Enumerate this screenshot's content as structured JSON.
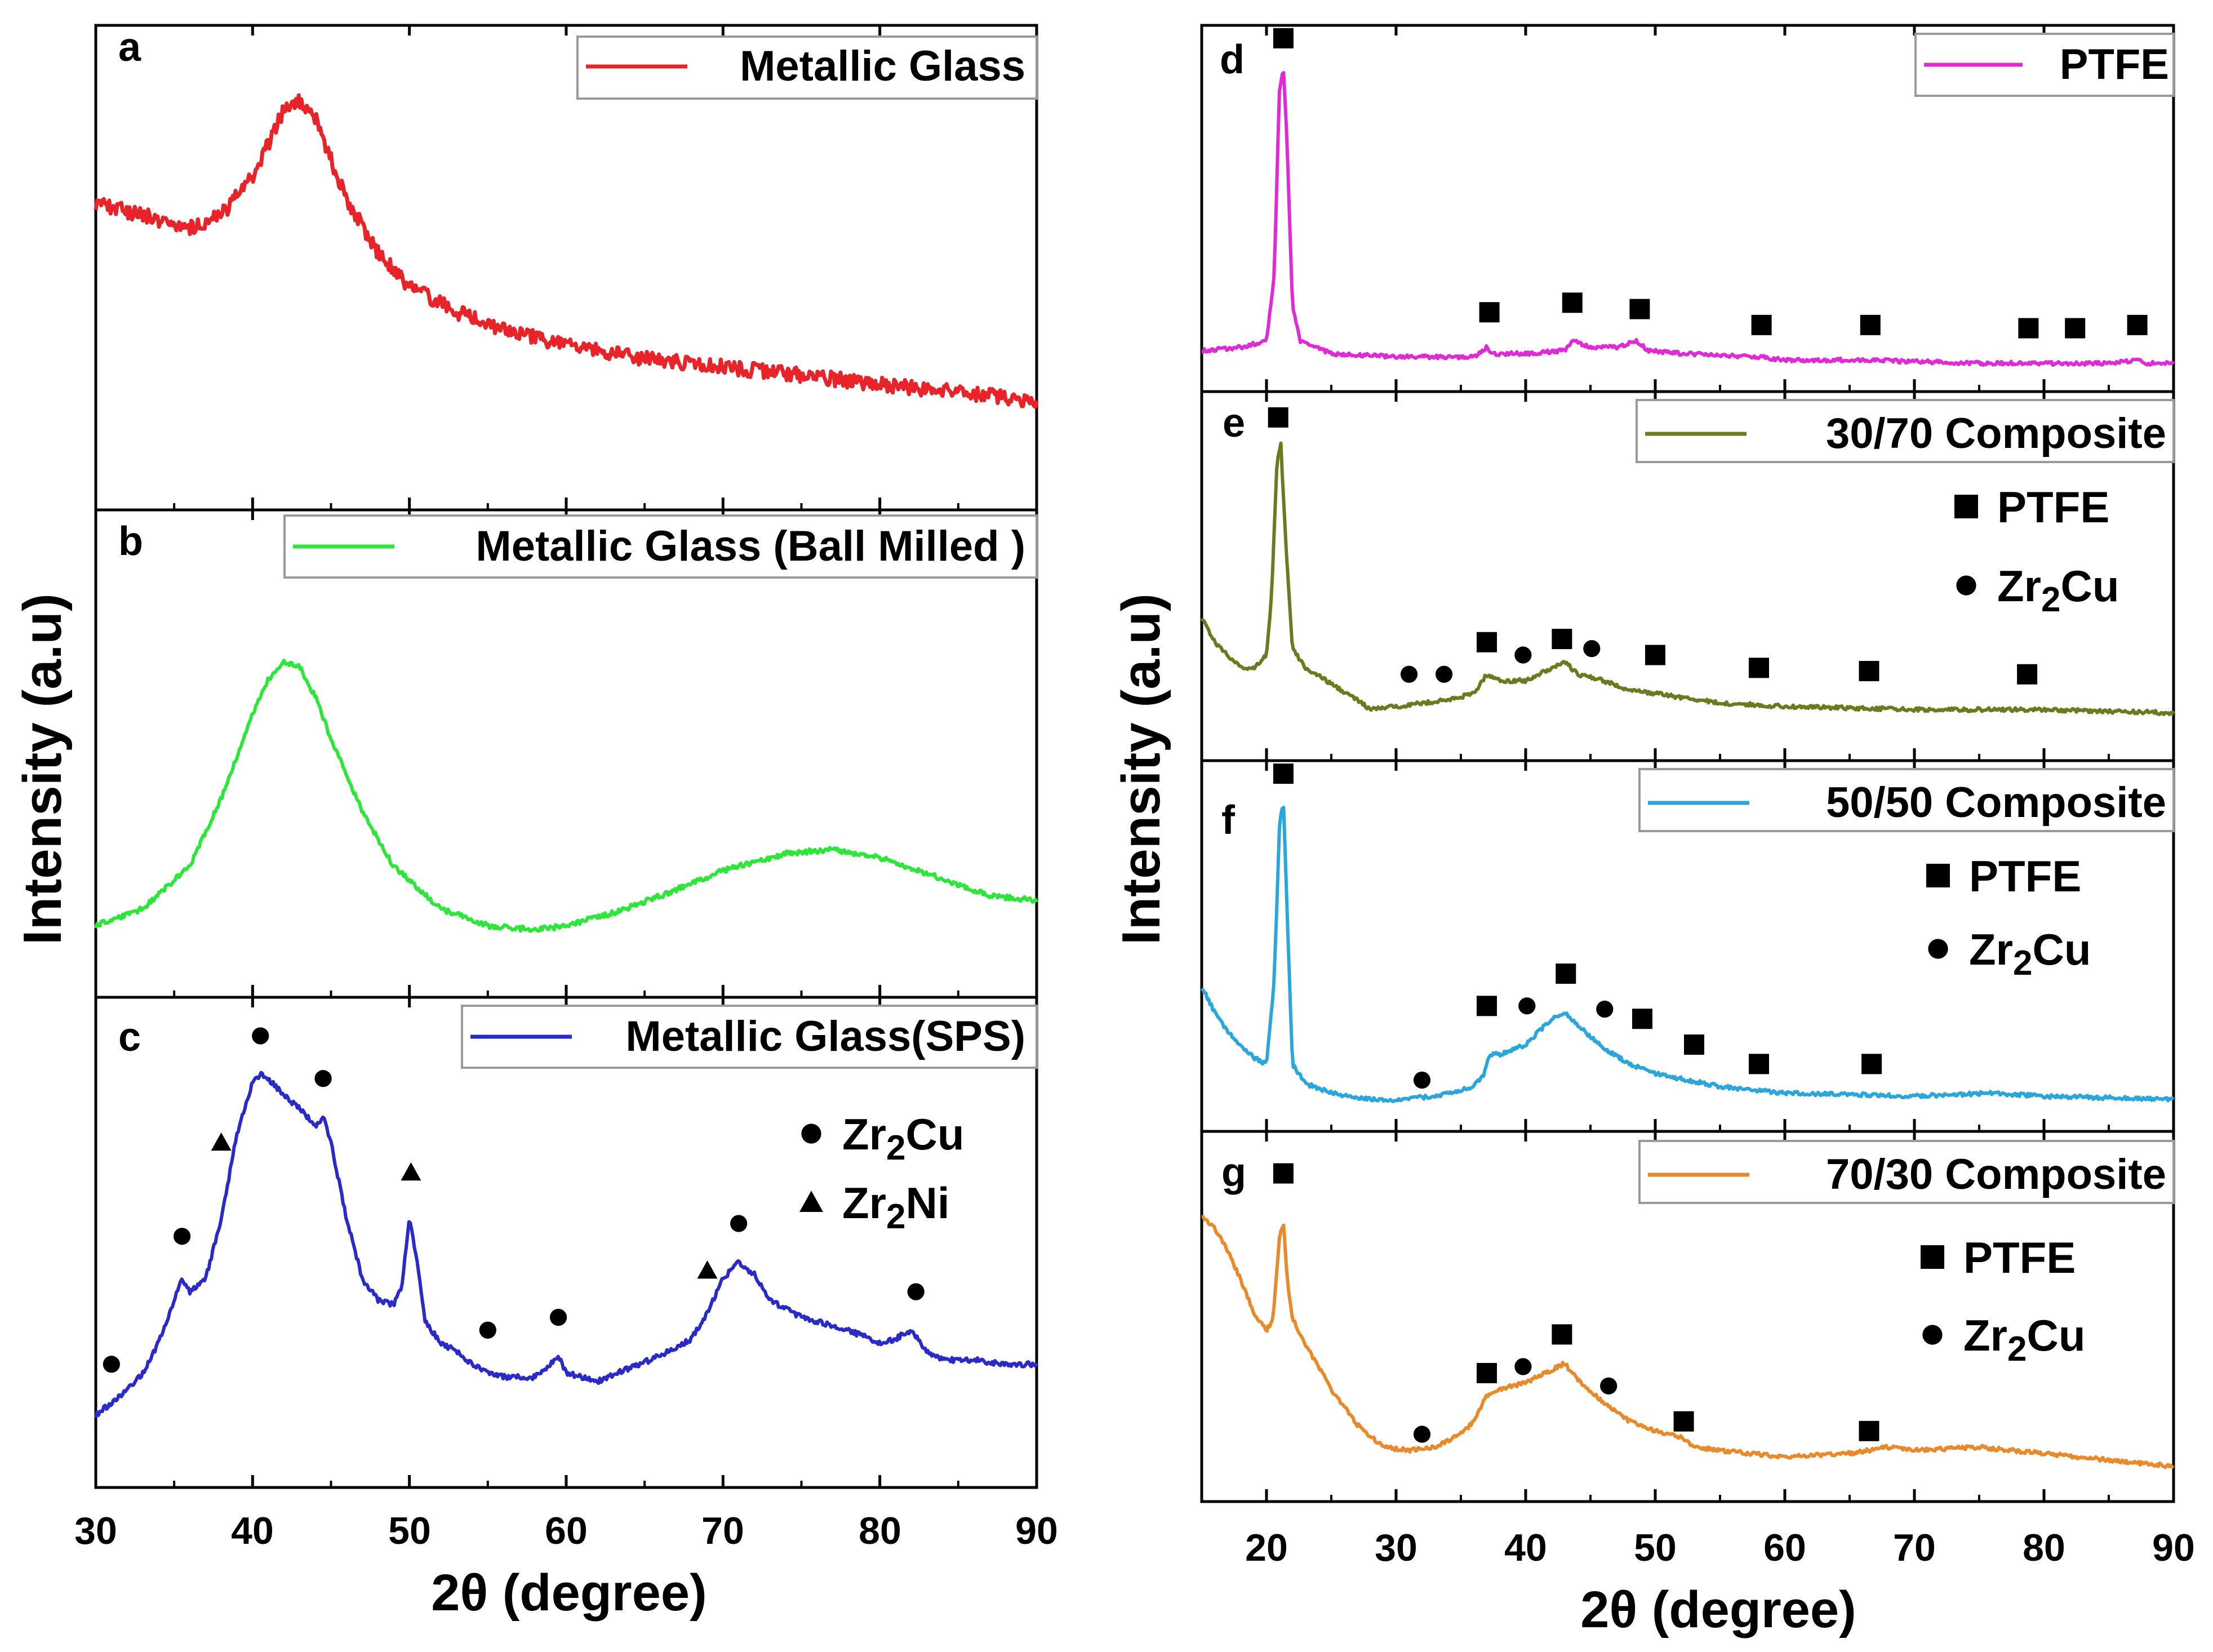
{
  "figure": {
    "left_ylabel": "Intensity (a.u)",
    "right_ylabel": "Intensity (a.u)",
    "left_xlabel": "2θ (degree)",
    "right_xlabel": "2θ (degree)",
    "left_xticks": [
      "30",
      "40",
      "50",
      "60",
      "70",
      "80",
      "90"
    ],
    "right_xticks": [
      "20",
      "30",
      "40",
      "50",
      "60",
      "70",
      "80",
      "90"
    ]
  },
  "chart_data": [
    {
      "id": "a",
      "type": "line",
      "panel_letter": "a",
      "legend": "Metallic Glass",
      "color": "#e8242a",
      "xlim": [
        30,
        90
      ],
      "xlabel": "2θ (degree)",
      "ylabel": "Intensity (a.u)",
      "series": [
        {
          "name": "Metallic Glass",
          "x": [
            30,
            33,
            36,
            38,
            40,
            41,
            42,
            43,
            44,
            45,
            46,
            48,
            50,
            53,
            56,
            60,
            65,
            70,
            75,
            80,
            85,
            90
          ],
          "y": [
            0.66,
            0.63,
            0.6,
            0.63,
            0.72,
            0.8,
            0.88,
            0.9,
            0.86,
            0.76,
            0.67,
            0.54,
            0.46,
            0.4,
            0.36,
            0.32,
            0.29,
            0.27,
            0.25,
            0.23,
            0.21,
            0.19
          ]
        }
      ],
      "markers": []
    },
    {
      "id": "b",
      "type": "line",
      "panel_letter": "b",
      "legend": "Metallic Glass (Ball Milled )",
      "color": "#2ee63a",
      "xlim": [
        30,
        90
      ],
      "xlabel": "2θ (degree)",
      "ylabel": "Intensity (a.u)",
      "series": [
        {
          "name": "Metallic Glass (Ball Milled )",
          "x": [
            30,
            33,
            36,
            38,
            40,
            41,
            42,
            43,
            44,
            45,
            47,
            49,
            52,
            55,
            58,
            60,
            63,
            66,
            70,
            74,
            77,
            80,
            84,
            87,
            90
          ],
          "y": [
            0.1,
            0.14,
            0.24,
            0.4,
            0.6,
            0.68,
            0.72,
            0.71,
            0.64,
            0.54,
            0.37,
            0.24,
            0.14,
            0.1,
            0.09,
            0.1,
            0.13,
            0.17,
            0.23,
            0.27,
            0.28,
            0.26,
            0.21,
            0.17,
            0.16
          ]
        }
      ],
      "markers": []
    },
    {
      "id": "c",
      "type": "line",
      "panel_letter": "c",
      "legend": "Metallic Glass(SPS)",
      "color": "#2a2ac8",
      "xlim": [
        30,
        90
      ],
      "xlabel": "2θ (degree)",
      "ylabel": "Intensity (a.u)",
      "series": [
        {
          "name": "Metallic Glass(SPS)",
          "x": [
            30,
            31,
            32,
            33,
            34,
            35,
            35.5,
            36,
            37,
            38,
            39,
            40,
            40.5,
            41,
            42,
            43,
            44,
            44.5,
            45,
            46,
            47,
            48,
            49,
            49.5,
            50,
            50.5,
            51,
            52,
            53,
            54,
            55,
            56,
            57,
            58,
            59,
            59.5,
            60,
            61,
            62,
            64,
            66,
            68,
            69,
            70,
            71,
            72,
            73,
            75,
            78,
            80,
            81,
            82,
            83,
            84,
            86,
            88,
            90
          ],
          "y": [
            0.1,
            0.13,
            0.16,
            0.2,
            0.27,
            0.37,
            0.42,
            0.39,
            0.42,
            0.56,
            0.76,
            0.88,
            0.9,
            0.89,
            0.85,
            0.82,
            0.78,
            0.8,
            0.74,
            0.56,
            0.42,
            0.37,
            0.36,
            0.4,
            0.56,
            0.46,
            0.32,
            0.27,
            0.25,
            0.22,
            0.2,
            0.19,
            0.19,
            0.19,
            0.22,
            0.24,
            0.2,
            0.19,
            0.18,
            0.21,
            0.24,
            0.28,
            0.34,
            0.42,
            0.46,
            0.43,
            0.37,
            0.33,
            0.3,
            0.27,
            0.28,
            0.3,
            0.25,
            0.23,
            0.23,
            0.22,
            0.22
          ]
        }
      ],
      "markers": [
        {
          "shape": "circle",
          "x": 31,
          "y": 0.22
        },
        {
          "shape": "circle",
          "x": 35.5,
          "y": 0.52
        },
        {
          "shape": "triangle",
          "x": 38,
          "y": 0.74
        },
        {
          "shape": "circle",
          "x": 40.5,
          "y": 0.99
        },
        {
          "shape": "circle",
          "x": 44.5,
          "y": 0.89
        },
        {
          "shape": "triangle",
          "x": 50.1,
          "y": 0.67
        },
        {
          "shape": "circle",
          "x": 55,
          "y": 0.3
        },
        {
          "shape": "circle",
          "x": 59.5,
          "y": 0.33
        },
        {
          "shape": "triangle",
          "x": 69,
          "y": 0.44
        },
        {
          "shape": "circle",
          "x": 71,
          "y": 0.55
        },
        {
          "shape": "circle",
          "x": 82.3,
          "y": 0.39
        }
      ],
      "phase_legend": [
        {
          "shape": "circle",
          "prefix": "Zr",
          "sub": "2",
          "suffix": "Cu"
        },
        {
          "shape": "triangle",
          "prefix": "Zr",
          "sub": "2",
          "suffix": "Ni"
        }
      ]
    },
    {
      "id": "d",
      "type": "line",
      "panel_letter": "d",
      "legend": "PTFE",
      "color": "#e02ad6",
      "xlim": [
        15,
        90
      ],
      "xlabel": "2θ (degree)",
      "ylabel": "Intensity (a.u)",
      "series": [
        {
          "name": "PTFE",
          "x": [
            15,
            18,
            20,
            20.6,
            21.0,
            21.3,
            21.6,
            22.0,
            22.6,
            25,
            30,
            36,
            37,
            37.5,
            40,
            43,
            43.7,
            45,
            47,
            48.5,
            49.5,
            52,
            58,
            60,
            66,
            75,
            85,
            87,
            88,
            90
          ],
          "y": [
            0.06,
            0.07,
            0.09,
            0.3,
            0.88,
            0.95,
            0.7,
            0.2,
            0.09,
            0.05,
            0.04,
            0.04,
            0.07,
            0.05,
            0.05,
            0.06,
            0.09,
            0.07,
            0.07,
            0.09,
            0.06,
            0.05,
            0.04,
            0.03,
            0.03,
            0.02,
            0.02,
            0.03,
            0.02,
            0.02
          ]
        }
      ],
      "markers": [
        {
          "shape": "square",
          "x": 21.3,
          "y": 1.04
        },
        {
          "shape": "square",
          "x": 37.2,
          "y": 0.18
        },
        {
          "shape": "square",
          "x": 43.6,
          "y": 0.21
        },
        {
          "shape": "square",
          "x": 48.8,
          "y": 0.19
        },
        {
          "shape": "square",
          "x": 58.2,
          "y": 0.14
        },
        {
          "shape": "square",
          "x": 66.6,
          "y": 0.14
        },
        {
          "shape": "square",
          "x": 78.8,
          "y": 0.13
        },
        {
          "shape": "square",
          "x": 82.4,
          "y": 0.13
        },
        {
          "shape": "square",
          "x": 87.2,
          "y": 0.14
        }
      ]
    },
    {
      "id": "e",
      "type": "line",
      "panel_letter": "e",
      "legend": "30/70 Composite",
      "color": "#6b7a1e",
      "xlim": [
        15,
        90
      ],
      "xlabel": "2θ (degree)",
      "ylabel": "Intensity (a.u)",
      "series": [
        {
          "name": "30/70 Composite",
          "x": [
            15,
            16,
            17,
            18,
            19,
            20,
            20.4,
            20.8,
            21.1,
            21.5,
            22,
            23,
            25,
            27,
            28,
            30,
            32,
            34,
            36,
            37,
            38,
            40,
            42,
            43,
            44,
            46,
            48,
            50,
            55,
            60,
            70,
            80,
            90
          ],
          "y": [
            0.38,
            0.3,
            0.26,
            0.22,
            0.22,
            0.26,
            0.45,
            0.85,
            0.92,
            0.6,
            0.28,
            0.22,
            0.17,
            0.12,
            0.09,
            0.1,
            0.11,
            0.12,
            0.14,
            0.2,
            0.18,
            0.18,
            0.22,
            0.24,
            0.2,
            0.18,
            0.15,
            0.14,
            0.11,
            0.1,
            0.09,
            0.09,
            0.08
          ]
        }
      ],
      "markers": [
        {
          "shape": "square",
          "x": 20.9,
          "y": 1.0
        },
        {
          "shape": "circle",
          "x": 31,
          "y": 0.2
        },
        {
          "shape": "circle",
          "x": 33.7,
          "y": 0.2
        },
        {
          "shape": "square",
          "x": 37,
          "y": 0.3
        },
        {
          "shape": "circle",
          "x": 39.8,
          "y": 0.26
        },
        {
          "shape": "square",
          "x": 42.8,
          "y": 0.31
        },
        {
          "shape": "circle",
          "x": 45.1,
          "y": 0.28
        },
        {
          "shape": "square",
          "x": 50,
          "y": 0.26
        },
        {
          "shape": "square",
          "x": 58,
          "y": 0.22
        },
        {
          "shape": "square",
          "x": 66.5,
          "y": 0.21
        },
        {
          "shape": "square",
          "x": 78.7,
          "y": 0.2
        }
      ],
      "phase_legend": [
        {
          "shape": "square",
          "prefix": "PTFE",
          "sub": "",
          "suffix": ""
        },
        {
          "shape": "circle",
          "prefix": "Zr",
          "sub": "2",
          "suffix": "Cu"
        }
      ]
    },
    {
      "id": "f",
      "type": "line",
      "panel_letter": "f",
      "legend": "50/50 Composite",
      "color": "#2aa6dc",
      "xlim": [
        15,
        90
      ],
      "xlabel": "2θ (degree)",
      "ylabel": "Intensity (a.u)",
      "series": [
        {
          "name": "50/50 Composite",
          "x": [
            15,
            16,
            17,
            18,
            19,
            20,
            20.6,
            21.0,
            21.3,
            21.6,
            22,
            23,
            25,
            28,
            30,
            33,
            36,
            36.8,
            37.2,
            38,
            40,
            42,
            43,
            44,
            46,
            48,
            50,
            55,
            60,
            70,
            76,
            80,
            90
          ],
          "y": [
            0.38,
            0.3,
            0.24,
            0.2,
            0.16,
            0.14,
            0.4,
            0.88,
            0.96,
            0.6,
            0.14,
            0.08,
            0.05,
            0.03,
            0.03,
            0.04,
            0.07,
            0.11,
            0.17,
            0.17,
            0.2,
            0.28,
            0.3,
            0.26,
            0.19,
            0.14,
            0.11,
            0.07,
            0.05,
            0.04,
            0.05,
            0.04,
            0.03
          ]
        }
      ],
      "markers": [
        {
          "shape": "square",
          "x": 21.3,
          "y": 1.04
        },
        {
          "shape": "circle",
          "x": 32,
          "y": 0.09
        },
        {
          "shape": "square",
          "x": 37,
          "y": 0.32
        },
        {
          "shape": "circle",
          "x": 40.1,
          "y": 0.32
        },
        {
          "shape": "square",
          "x": 43.1,
          "y": 0.42
        },
        {
          "shape": "circle",
          "x": 46.1,
          "y": 0.31
        },
        {
          "shape": "square",
          "x": 49,
          "y": 0.28
        },
        {
          "shape": "square",
          "x": 53,
          "y": 0.2
        },
        {
          "shape": "square",
          "x": 58,
          "y": 0.14
        },
        {
          "shape": "square",
          "x": 66.7,
          "y": 0.14
        }
      ],
      "phase_legend": [
        {
          "shape": "square",
          "prefix": "PTFE",
          "sub": "",
          "suffix": ""
        },
        {
          "shape": "circle",
          "prefix": "Zr",
          "sub": "2",
          "suffix": "Cu"
        }
      ]
    },
    {
      "id": "g",
      "type": "line",
      "panel_letter": "g",
      "legend": "70/30 Composite",
      "color": "#e88a2a",
      "xlim": [
        15,
        90
      ],
      "xlabel": "2θ (degree)",
      "ylabel": "Intensity (a.u)",
      "series": [
        {
          "name": "70/30 Composite",
          "x": [
            15,
            16,
            17,
            18,
            19,
            20,
            20.5,
            21.0,
            21.3,
            21.6,
            22,
            23,
            25,
            27,
            29,
            31,
            33,
            35,
            36,
            37,
            38,
            40,
            42,
            43,
            44,
            46,
            48,
            50,
            52,
            53,
            55,
            60,
            65,
            68,
            70,
            75,
            80,
            85,
            90
          ],
          "y": [
            0.82,
            0.78,
            0.71,
            0.62,
            0.52,
            0.46,
            0.5,
            0.75,
            0.8,
            0.62,
            0.5,
            0.42,
            0.28,
            0.17,
            0.1,
            0.09,
            0.1,
            0.14,
            0.18,
            0.26,
            0.28,
            0.3,
            0.34,
            0.36,
            0.31,
            0.24,
            0.18,
            0.15,
            0.13,
            0.1,
            0.09,
            0.07,
            0.08,
            0.1,
            0.09,
            0.1,
            0.08,
            0.06,
            0.04
          ]
        }
      ],
      "markers": [
        {
          "shape": "square",
          "x": 21.3,
          "y": 0.95
        },
        {
          "shape": "circle",
          "x": 32,
          "y": 0.14
        },
        {
          "shape": "square",
          "x": 37,
          "y": 0.33
        },
        {
          "shape": "circle",
          "x": 39.8,
          "y": 0.35
        },
        {
          "shape": "square",
          "x": 42.8,
          "y": 0.45
        },
        {
          "shape": "circle",
          "x": 46.4,
          "y": 0.29
        },
        {
          "shape": "square",
          "x": 52.2,
          "y": 0.18
        },
        {
          "shape": "square",
          "x": 66.5,
          "y": 0.15
        }
      ],
      "phase_legend": [
        {
          "shape": "square",
          "prefix": "PTFE",
          "sub": "",
          "suffix": ""
        },
        {
          "shape": "circle",
          "prefix": "Zr",
          "sub": "2",
          "suffix": "Cu"
        }
      ]
    }
  ]
}
